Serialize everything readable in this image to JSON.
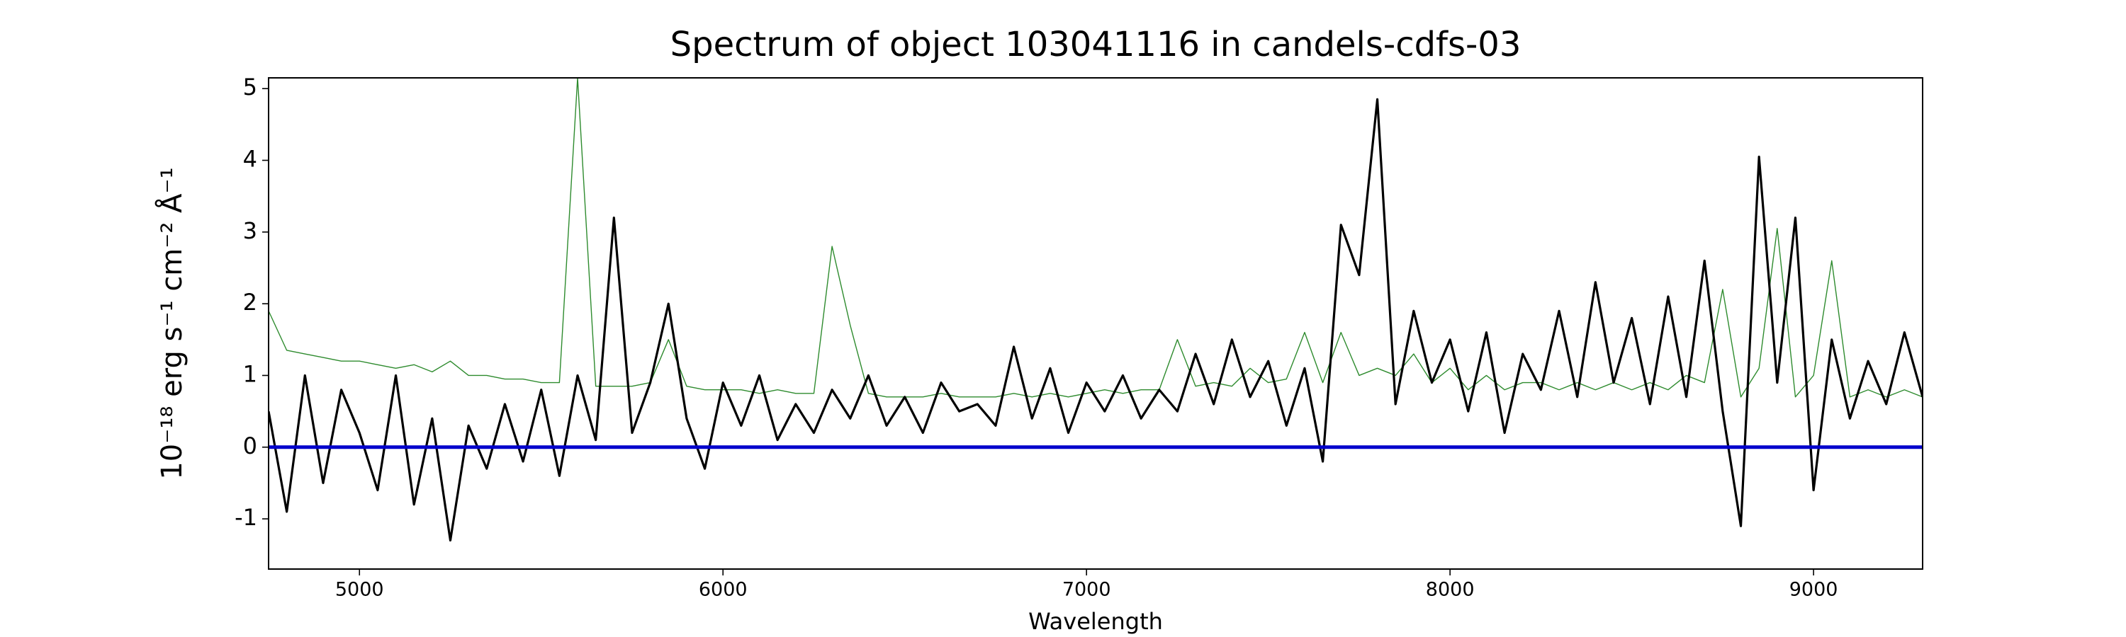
{
  "chart_data": {
    "type": "line",
    "title": "Spectrum of object 103041116 in candels-cdfs-03",
    "x_label": "Wavelength",
    "y_label": "10⁻¹⁸ erg s⁻¹ cm⁻² Å⁻¹",
    "x": [
      4750,
      4800,
      4850,
      4900,
      4950,
      5000,
      5050,
      5100,
      5150,
      5200,
      5250,
      5300,
      5350,
      5400,
      5450,
      5500,
      5550,
      5600,
      5650,
      5700,
      5750,
      5800,
      5850,
      5900,
      5950,
      6000,
      6050,
      6100,
      6150,
      6200,
      6250,
      6300,
      6350,
      6400,
      6450,
      6500,
      6550,
      6600,
      6650,
      6700,
      6750,
      6800,
      6850,
      6900,
      6950,
      7000,
      7050,
      7100,
      7150,
      7200,
      7250,
      7300,
      7350,
      7400,
      7450,
      7500,
      7550,
      7600,
      7650,
      7700,
      7750,
      7800,
      7850,
      7900,
      7950,
      8000,
      8050,
      8100,
      8150,
      8200,
      8250,
      8300,
      8350,
      8400,
      8450,
      8500,
      8550,
      8600,
      8650,
      8700,
      8750,
      8800,
      8850,
      8900,
      8950,
      9000,
      9050,
      9100,
      9150,
      9200,
      9250,
      9300
    ],
    "series": [
      {
        "color": "#2e8b2e",
        "width": 1.4,
        "values": [
          1.9,
          1.35,
          1.3,
          1.25,
          1.2,
          1.2,
          1.15,
          1.1,
          1.15,
          1.05,
          1.2,
          1.0,
          1.0,
          0.95,
          0.95,
          0.9,
          0.9,
          5.15,
          0.85,
          0.85,
          0.85,
          0.9,
          1.5,
          0.85,
          0.8,
          0.8,
          0.8,
          0.75,
          0.8,
          0.75,
          0.75,
          2.8,
          1.7,
          0.75,
          0.7,
          0.7,
          0.7,
          0.75,
          0.7,
          0.7,
          0.7,
          0.75,
          0.7,
          0.75,
          0.7,
          0.75,
          0.8,
          0.75,
          0.8,
          0.8,
          1.5,
          0.85,
          0.9,
          0.85,
          1.1,
          0.9,
          0.95,
          1.6,
          0.9,
          1.6,
          1.0,
          1.1,
          1.0,
          1.3,
          0.9,
          1.1,
          0.8,
          1.0,
          0.8,
          0.9,
          0.9,
          0.8,
          0.9,
          0.8,
          0.9,
          0.8,
          0.9,
          0.8,
          1.0,
          0.9,
          2.2,
          0.7,
          1.1,
          3.05,
          0.7,
          1.0,
          2.6,
          0.7,
          0.8,
          0.7,
          0.8,
          0.7
        ]
      },
      {
        "color": "#000000",
        "width": 3.2,
        "values": [
          0.5,
          -0.9,
          1.0,
          -0.5,
          0.8,
          0.2,
          -0.6,
          1.0,
          -0.8,
          0.4,
          -1.3,
          0.3,
          -0.3,
          0.6,
          -0.2,
          0.8,
          -0.4,
          1.0,
          0.1,
          3.2,
          0.2,
          0.9,
          2.0,
          0.4,
          -0.3,
          0.9,
          0.3,
          1.0,
          0.1,
          0.6,
          0.2,
          0.8,
          0.4,
          1.0,
          0.3,
          0.7,
          0.2,
          0.9,
          0.5,
          0.6,
          0.3,
          1.4,
          0.4,
          1.1,
          0.2,
          0.9,
          0.5,
          1.0,
          0.4,
          0.8,
          0.5,
          1.3,
          0.6,
          1.5,
          0.7,
          1.2,
          0.3,
          1.1,
          -0.2,
          3.1,
          2.4,
          4.85,
          0.6,
          1.9,
          0.9,
          1.5,
          0.5,
          1.6,
          0.2,
          1.3,
          0.8,
          1.9,
          0.7,
          2.3,
          0.9,
          1.8,
          0.6,
          2.1,
          0.7,
          2.6,
          0.5,
          -1.1,
          4.05,
          0.9,
          3.2,
          -0.6,
          1.5,
          0.4,
          1.2,
          0.6,
          1.6,
          0.7
        ]
      }
    ],
    "baseline": {
      "value": 0,
      "color": "#0000cc"
    },
    "xlim": [
      4750,
      9300
    ],
    "ylim": [
      -1.7,
      5.15
    ],
    "xticks": [
      5000,
      6000,
      7000,
      8000,
      9000
    ],
    "yticks": [
      -1,
      0,
      1,
      2,
      3,
      4,
      5
    ]
  }
}
